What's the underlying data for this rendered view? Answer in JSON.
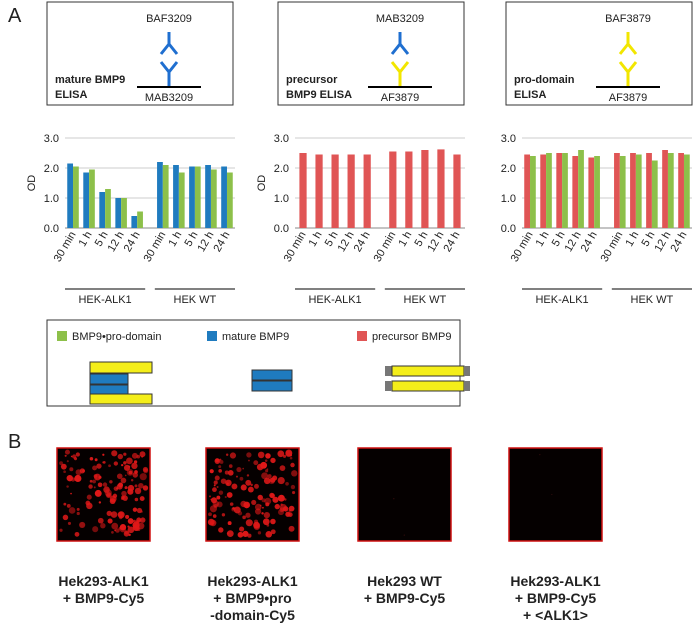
{
  "panels": [
    "A",
    "B"
  ],
  "elisa": [
    {
      "title": [
        "mature BMP9",
        "ELISA"
      ],
      "top": "BAF3209",
      "bottom": "MAB3209",
      "top_color": "#1f6fd0",
      "bottom_color": "#1f6fd0"
    },
    {
      "title": [
        "precursor",
        "BMP9 ELISA"
      ],
      "top": "MAB3209",
      "bottom": "AF3879",
      "top_color": "#1f6fd0",
      "bottom_color": "#f2e600"
    },
    {
      "title": [
        "pro-domain",
        "ELISA"
      ],
      "top": "BAF3879",
      "bottom": "AF3879",
      "top_color": "#f2e600",
      "bottom_color": "#f2e600"
    }
  ],
  "chart_data": [
    {
      "type": "bar",
      "ylabel": "OD",
      "ylim": [
        0,
        3
      ],
      "yticks": [
        {
          "value": 0,
          "label": "0.0"
        },
        {
          "value": 1,
          "label": "1.0"
        },
        {
          "value": 2,
          "label": "2.0"
        },
        {
          "value": 3,
          "label": "3.0"
        }
      ],
      "categories": [
        "30 min",
        "1 h",
        "5 h",
        "12 h",
        "24 h",
        "30 min",
        "1 h",
        "5 h",
        "12 h",
        "24 h"
      ],
      "groups": [
        "HEK-ALK1",
        "HEK WT"
      ],
      "series": [
        {
          "color": "#1f7bbf",
          "values": [
            2.15,
            1.85,
            1.2,
            1.0,
            0.4,
            2.2,
            2.1,
            2.05,
            2.1,
            2.05
          ]
        },
        {
          "color": "#8dc04a",
          "values": [
            2.05,
            1.95,
            1.3,
            1.0,
            0.55,
            2.1,
            1.85,
            2.05,
            1.95,
            1.85
          ]
        }
      ]
    },
    {
      "type": "bar",
      "ylabel": "OD",
      "ylim": [
        0,
        3
      ],
      "yticks": [
        {
          "value": 0,
          "label": "0.0"
        },
        {
          "value": 1,
          "label": "1.0"
        },
        {
          "value": 2,
          "label": "2.0"
        },
        {
          "value": 3,
          "label": "3.0"
        }
      ],
      "categories": [
        "30 min",
        "1 h",
        "5 h",
        "12 h",
        "24 h",
        "30 min",
        "1 h",
        "5 h",
        "12 h",
        "24 h"
      ],
      "groups": [
        "HEK-ALK1",
        "HEK WT"
      ],
      "series": [
        {
          "color": "#e05555",
          "values": [
            2.5,
            2.45,
            2.45,
            2.45,
            2.45,
            2.55,
            2.55,
            2.6,
            2.62,
            2.45
          ]
        }
      ]
    },
    {
      "type": "bar",
      "ylim": [
        0,
        3
      ],
      "yticks": [
        {
          "value": 0,
          "label": "0.0"
        },
        {
          "value": 1,
          "label": "1.0"
        },
        {
          "value": 2,
          "label": "2.0"
        },
        {
          "value": 3,
          "label": "3.0"
        }
      ],
      "categories": [
        "30 min",
        "1 h",
        "5 h",
        "12 h",
        "24 h",
        "30 min",
        "1 h",
        "5 h",
        "12 h",
        "24 h"
      ],
      "groups": [
        "HEK-ALK1",
        "HEK WT"
      ],
      "series": [
        {
          "color": "#e05555",
          "values": [
            2.45,
            2.45,
            2.5,
            2.4,
            2.35,
            2.5,
            2.5,
            2.5,
            2.6,
            2.5
          ]
        },
        {
          "color": "#8dc04a",
          "values": [
            2.4,
            2.5,
            2.5,
            2.6,
            2.4,
            2.4,
            2.45,
            2.25,
            2.5,
            2.45
          ]
        }
      ]
    }
  ],
  "legend": [
    {
      "name": "BMP9•pro-domain",
      "color": "#8dc04a"
    },
    {
      "name": "mature BMP9",
      "color": "#1f7bbf"
    },
    {
      "name": "precursor BMP9",
      "color": "#e05555"
    }
  ],
  "images": [
    {
      "caption": [
        "Hek293-ALK1",
        "+ BMP9-Cy5"
      ]
    },
    {
      "caption": [
        "Hek293-ALK1",
        "+ BMP9•pro",
        "-domain-Cy5"
      ]
    },
    {
      "caption": [
        "Hek293 WT",
        "+ BMP9-Cy5"
      ]
    },
    {
      "caption": [
        "Hek293-ALK1",
        "+ BMP9-Cy5",
        "+ <ALK1>"
      ]
    }
  ]
}
